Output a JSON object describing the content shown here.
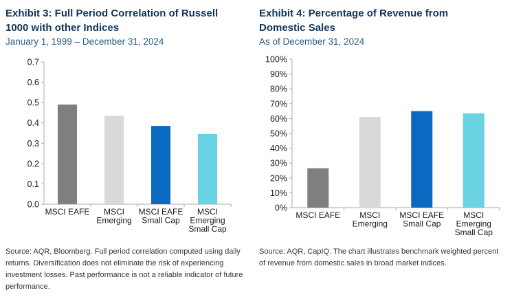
{
  "colors": {
    "title": "#12355b",
    "subtitle": "#2d5c86",
    "bars": [
      "#7f7f7f",
      "#d9d9d9",
      "#0a6ac1",
      "#69d3e3"
    ],
    "axis": "#aaaaaa"
  },
  "exhibit3": {
    "title_line1": "Exhibit 3: Full Period Correlation of Russell",
    "title_line2": "1000 with other Indices",
    "subtitle": "January 1, 1999 – December 31, 2024",
    "source": "Source: AQR, Bloomberg. Full period correlation computed using daily returns. Diversification does not eliminate the risk of experiencing investment losses. Past performance is not a reliable indicator of future performance."
  },
  "exhibit4": {
    "title_line1": "Exhibit 4: Percentage of Revenue from",
    "title_line2": "Domestic Sales",
    "subtitle": "As of December 31, 2024",
    "source": "Source: AQR, CapIQ. The chart illustrates benchmark weighted percent of revenue from domestic sales in broad market indices."
  },
  "chart_data": [
    {
      "type": "bar",
      "title": "Exhibit 3: Full Period Correlation of Russell 1000 with other Indices",
      "categories": [
        [
          "MSCI EAFE"
        ],
        [
          "MSCI",
          "Emerging"
        ],
        [
          "MSCI EAFE",
          "Small Cap"
        ],
        [
          "MSCI",
          "Emerging",
          "Small Cap"
        ]
      ],
      "values": [
        0.49,
        0.435,
        0.385,
        0.345
      ],
      "ylim": [
        0,
        0.7
      ],
      "yticks": [
        0,
        0.1,
        0.2,
        0.3,
        0.4,
        0.5,
        0.6,
        0.7
      ],
      "ytick_labels": [
        "0.0",
        "0.1",
        "0.2",
        "0.3",
        "0.4",
        "0.5",
        "0.6",
        "0.7"
      ],
      "xlabel": "",
      "ylabel": "",
      "grid": false
    },
    {
      "type": "bar",
      "title": "Exhibit 4: Percentage of Revenue from Domestic Sales",
      "categories": [
        [
          "MSCI EAFE"
        ],
        [
          "MSCI",
          "Emerging"
        ],
        [
          "MSCI EAFE",
          "Small Cap"
        ],
        [
          "MSCI",
          "Emerging",
          "Small Cap"
        ]
      ],
      "values": [
        26.5,
        61,
        65,
        63.5
      ],
      "ylim": [
        0,
        100
      ],
      "yticks": [
        0,
        10,
        20,
        30,
        40,
        50,
        60,
        70,
        80,
        90,
        100
      ],
      "ytick_labels": [
        "0%",
        "10%",
        "20%",
        "30%",
        "40%",
        "50%",
        "60%",
        "70%",
        "80%",
        "90%",
        "100%"
      ],
      "xlabel": "",
      "ylabel": "",
      "grid": false
    }
  ]
}
